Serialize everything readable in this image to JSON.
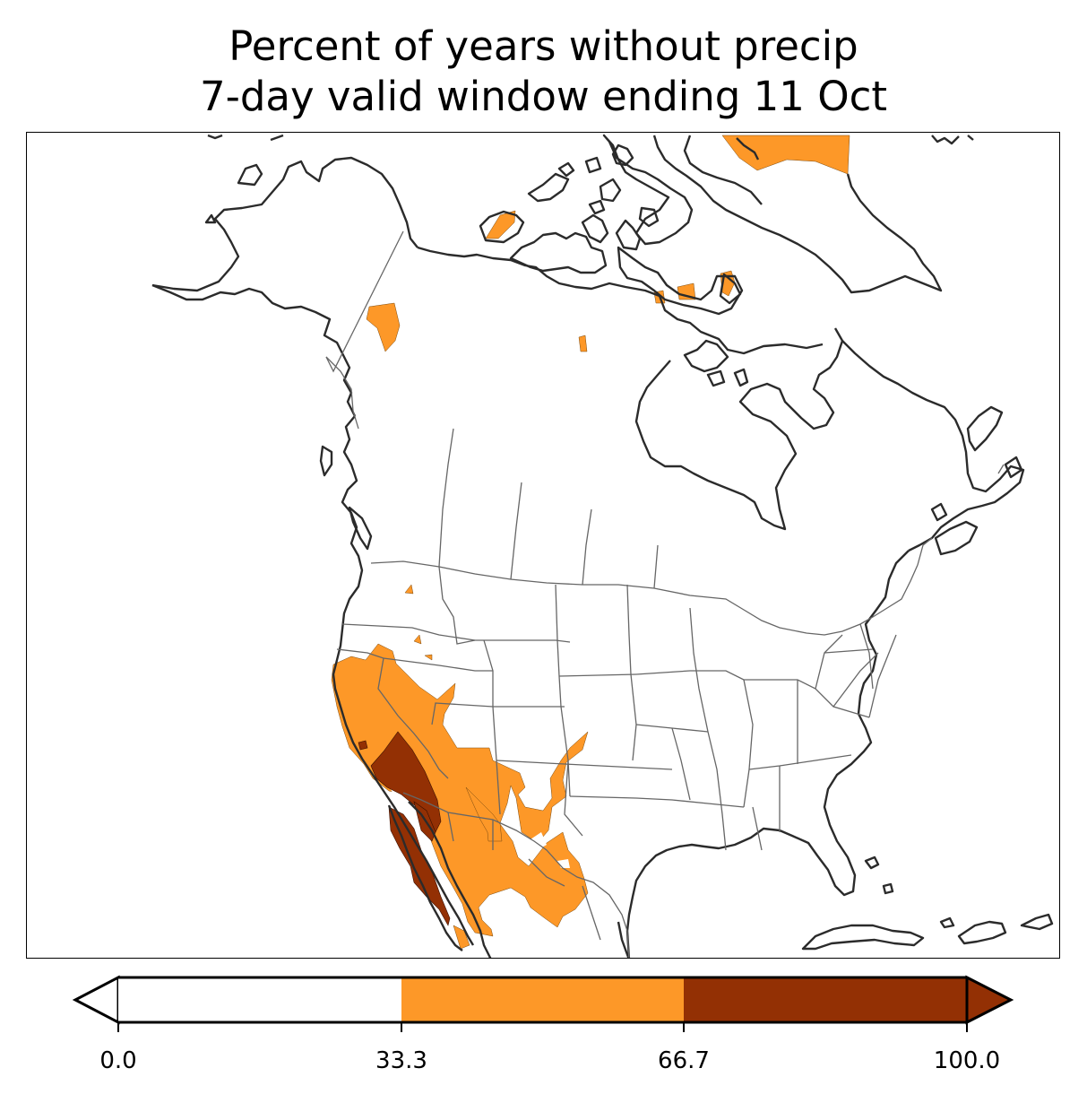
{
  "title": {
    "line1": "Percent of years without precip",
    "line2": "7-day valid window ending 11 Oct"
  },
  "colorbar": {
    "ticks": [
      "0.0",
      "33.3",
      "66.7",
      "100.0"
    ],
    "bins": [
      {
        "range": [
          0.0,
          33.3
        ],
        "color": "#ffffff"
      },
      {
        "range": [
          33.3,
          66.7
        ],
        "color": "#fd9828"
      },
      {
        "range": [
          66.7,
          100.0
        ],
        "color": "#933004"
      }
    ],
    "extend": "both"
  },
  "colors": {
    "coastline": "#2b2b2b",
    "borders": "#666666",
    "mid_bin": "#fd9828",
    "high_bin": "#933004"
  }
}
